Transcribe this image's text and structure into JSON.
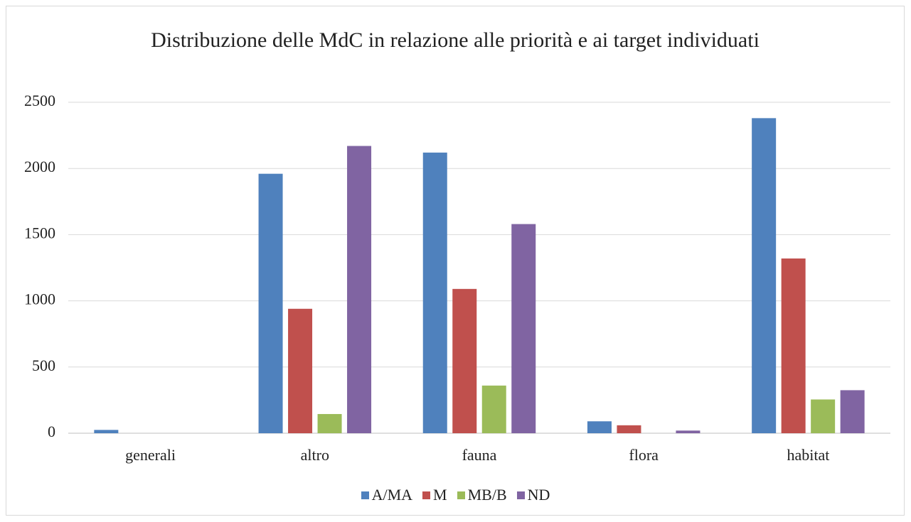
{
  "chart_data": {
    "type": "bar",
    "title": "Distribuzione delle MdC in relazione alle priorità e ai target individuati",
    "categories": [
      "generali",
      "altro",
      "fauna",
      "flora",
      "habitat"
    ],
    "series": [
      {
        "name": "A/MA",
        "color": "#4f81bd",
        "values": [
          25,
          1960,
          2120,
          90,
          2380
        ]
      },
      {
        "name": "M",
        "color": "#c0504d",
        "values": [
          0,
          940,
          1090,
          60,
          1320
        ]
      },
      {
        "name": "MB/B",
        "color": "#9bbb59",
        "values": [
          0,
          145,
          360,
          0,
          255
        ]
      },
      {
        "name": "ND",
        "color": "#8064a2",
        "values": [
          0,
          2170,
          1580,
          20,
          325
        ]
      }
    ],
    "ylim": [
      0,
      2500
    ],
    "yticks": [
      0,
      500,
      1000,
      1500,
      2000,
      2500
    ],
    "grid": true,
    "legend": "bottom"
  }
}
